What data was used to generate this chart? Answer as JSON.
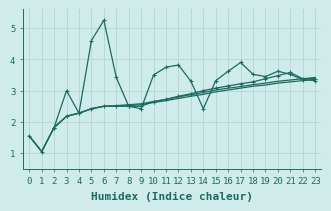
{
  "bg_color": "#d0ecea",
  "grid_color": "#b8d8d4",
  "line_color": "#1a6b60",
  "xlabel": "Humidex (Indice chaleur)",
  "xlabel_fontsize": 8,
  "tick_fontsize": 6.5,
  "yticks": [
    1,
    2,
    3,
    4,
    5
  ],
  "xlim": [
    -0.5,
    23.5
  ],
  "ylim": [
    0.5,
    5.6
  ],
  "xtick_labels": [
    "0",
    "1",
    "2",
    "3",
    "4",
    "5",
    "6",
    "7",
    "8",
    "9",
    "10",
    "11",
    "12",
    "13",
    "14",
    "15",
    "16",
    "17",
    "18",
    "19",
    "20",
    "21",
    "22",
    "23"
  ],
  "jagged_x": [
    0,
    1,
    2,
    3,
    4,
    5,
    6,
    7,
    8,
    9,
    10,
    11,
    12,
    13,
    14,
    15,
    16,
    17,
    18,
    19,
    20,
    21,
    22,
    23
  ],
  "jagged_y": [
    1.55,
    1.05,
    1.82,
    3.0,
    2.28,
    4.6,
    5.25,
    3.42,
    2.5,
    2.42,
    3.5,
    3.75,
    3.82,
    3.3,
    2.42,
    3.32,
    3.62,
    3.9,
    3.52,
    3.45,
    3.62,
    3.52,
    3.35,
    3.32
  ],
  "smooth1_x": [
    0,
    1,
    2,
    3,
    4,
    5,
    6,
    7,
    8,
    9,
    10,
    11,
    12,
    13,
    14,
    15,
    16,
    17,
    18,
    19,
    20,
    21,
    22,
    23
  ],
  "smooth1_y": [
    1.55,
    1.05,
    1.82,
    2.18,
    2.28,
    2.42,
    2.5,
    2.5,
    2.52,
    2.55,
    2.62,
    2.68,
    2.75,
    2.82,
    2.88,
    2.96,
    3.02,
    3.08,
    3.14,
    3.18,
    3.24,
    3.28,
    3.32,
    3.36
  ],
  "smooth2_x": [
    0,
    1,
    2,
    3,
    4,
    5,
    6,
    7,
    8,
    9,
    10,
    11,
    12,
    13,
    14,
    15,
    16,
    17,
    18,
    19,
    20,
    21,
    22,
    23
  ],
  "smooth2_y": [
    1.55,
    1.05,
    1.82,
    2.18,
    2.28,
    2.42,
    2.5,
    2.52,
    2.55,
    2.58,
    2.65,
    2.72,
    2.8,
    2.87,
    2.94,
    3.02,
    3.08,
    3.13,
    3.19,
    3.24,
    3.3,
    3.34,
    3.38,
    3.42
  ],
  "curve3_x": [
    2,
    3,
    4,
    5,
    6,
    7,
    8,
    9,
    10,
    11,
    12,
    13,
    14,
    15,
    16,
    17,
    18,
    19,
    20,
    21,
    22,
    23
  ],
  "curve3_y": [
    1.82,
    2.18,
    2.28,
    2.42,
    2.5,
    2.5,
    2.5,
    2.5,
    2.65,
    2.72,
    2.82,
    2.9,
    3.0,
    3.08,
    3.15,
    3.22,
    3.28,
    3.38,
    3.48,
    3.58,
    3.38,
    3.38
  ]
}
